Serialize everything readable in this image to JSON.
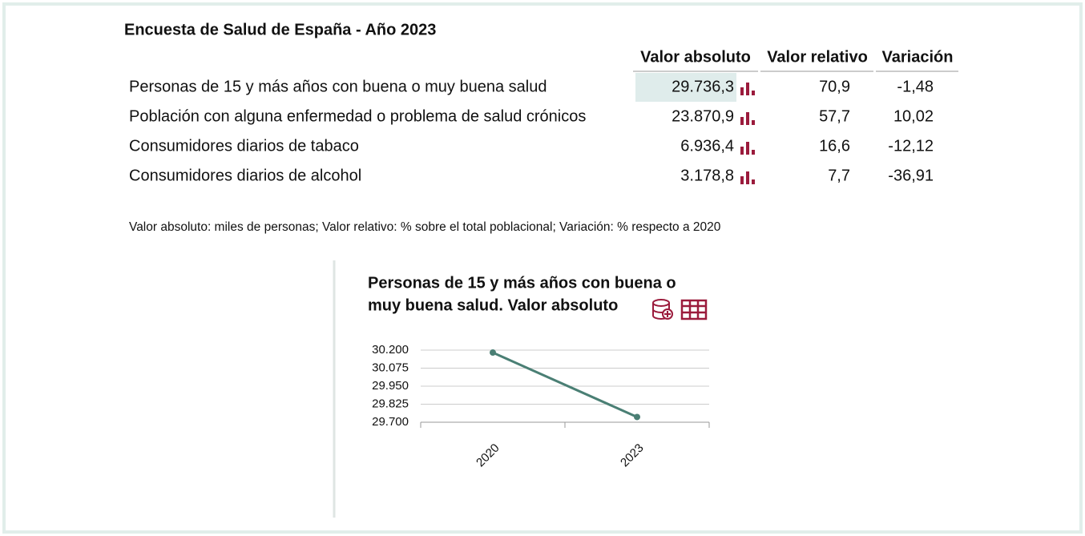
{
  "header": {
    "title": "Encuesta de Salud de España - Año 2023"
  },
  "table": {
    "columns": [
      "Valor absoluto",
      "Valor relativo",
      "Variación"
    ],
    "rows": [
      [
        "Personas de 15 y más años con buena o muy buena salud",
        "29.736,3",
        "70,9",
        "-1,48"
      ],
      [
        "Población con alguna enfermedad o problema de salud crónicos",
        "23.870,9",
        "57,7",
        "10,02"
      ],
      [
        "Consumidores diarios de tabaco",
        "6.936,4",
        "16,6",
        "-12,12"
      ],
      [
        "Consumidores diarios de alcohol",
        "3.178,8",
        "7,7",
        "-36,91"
      ]
    ]
  },
  "note": "Valor absoluto: miles de personas; Valor relativo: % sobre el total poblacional; Variación: % respecto a 2020",
  "chart_data": {
    "type": "line",
    "title": [
      "Personas de 15 y más años con buena o",
      "muy buena salud. Valor absoluto"
    ],
    "categories": [
      "2020",
      "2023"
    ],
    "values": [
      30183,
      29736.3
    ],
    "color": "#4a7f74",
    "ylim": [
      29700,
      30200
    ],
    "yticks": [
      {
        "value": 29700,
        "label": "29.700"
      },
      {
        "value": 29825,
        "label": "29.825"
      },
      {
        "value": 29950,
        "label": "29.950"
      },
      {
        "value": 30075,
        "label": "30.075"
      },
      {
        "value": 30200,
        "label": "30.200"
      }
    ],
    "grid": true
  }
}
